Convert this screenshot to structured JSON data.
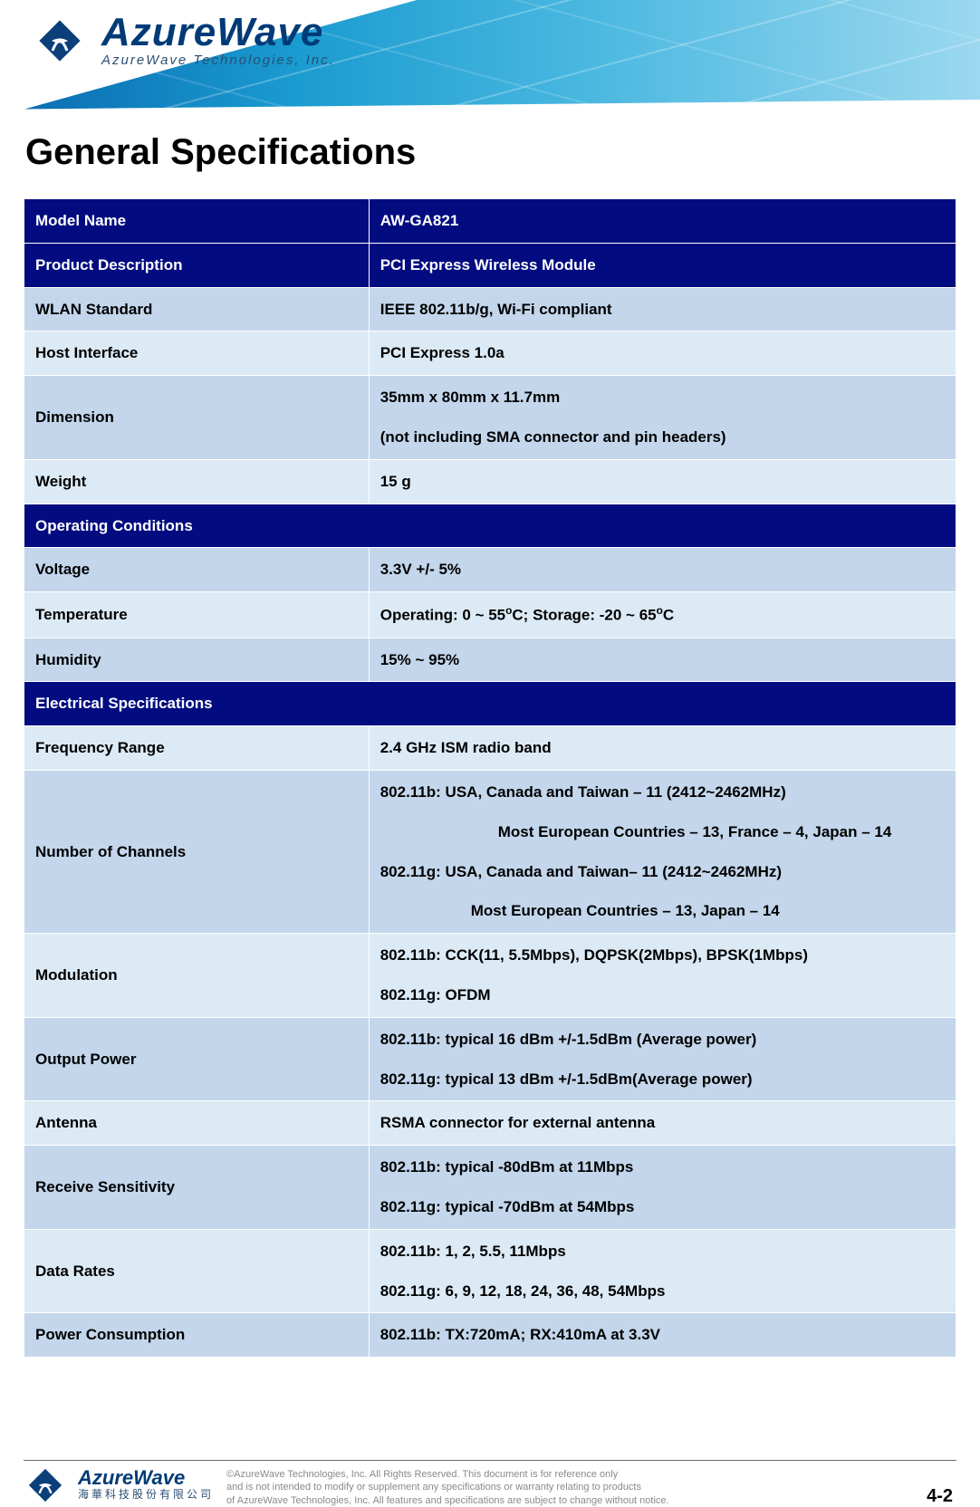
{
  "header": {
    "brand": "AzureWave",
    "tagline": "AzureWave  Technologies,  Inc.",
    "logo_colors": {
      "outer": "#0a3f7a",
      "inner": "#0a3f7a",
      "arc": "#ffffff"
    }
  },
  "title": "General Specifications",
  "table": {
    "type": "table",
    "columns": [
      "label",
      "value"
    ],
    "column_widths": [
      "37%",
      "63%"
    ],
    "header_bg": "#020c80",
    "header_fg": "#ffffff",
    "body_bg_even": "#dceaf5",
    "body_bg_odd": "#c3d6eb",
    "body_fg": "#000000",
    "label_font": "Verdana",
    "value_font": "Arial",
    "label_weight": "bold",
    "value_weight": "bold",
    "fontsize": 17,
    "rows": [
      {
        "kind": "header",
        "label": "Model Name",
        "value": "AW-GA821"
      },
      {
        "kind": "header",
        "label": "Product Description",
        "value": "PCI Express Wireless Module"
      },
      {
        "kind": "body",
        "label": "WLAN Standard",
        "value": "IEEE 802.11b/g, Wi-Fi compliant"
      },
      {
        "kind": "body",
        "label": "Host Interface",
        "value": "PCI Express 1.0a"
      },
      {
        "kind": "body",
        "label": "Dimension",
        "value_lines": [
          "35mm x 80mm x 11.7mm",
          "(not including SMA connector and pin headers)"
        ]
      },
      {
        "kind": "body",
        "label": "Weight",
        "value": "15 g"
      },
      {
        "kind": "section",
        "label": "Operating Conditions"
      },
      {
        "kind": "body",
        "label": "Voltage",
        "value": "3.3V +/- 5%"
      },
      {
        "kind": "body",
        "label": "Temperature",
        "value_html": "Operating: 0 ~ 55<sup>o</sup>C; Storage: -20 ~ 65<sup>o</sup>C"
      },
      {
        "kind": "body",
        "label": "Humidity",
        "value": "15% ~ 95%"
      },
      {
        "kind": "section",
        "label": "Electrical Specifications"
      },
      {
        "kind": "body",
        "label": "Frequency Range",
        "value": "2.4 GHz ISM radio band"
      },
      {
        "kind": "body",
        "label": "Number of Channels",
        "value_lines": [
          "802.11b: USA, Canada and Taiwan – 11 (2412~2462MHz)",
          {
            "text": "Most European Countries – 13, France – 4, Japan – 14",
            "indent": "indent-1"
          },
          "802.11g: USA, Canada and Taiwan– 11   (2412~2462MHz)",
          {
            "text": "Most European Countries – 13, Japan – 14",
            "indent": "indent-2"
          }
        ]
      },
      {
        "kind": "body",
        "label": "Modulation",
        "value_lines": [
          "802.11b: CCK(11, 5.5Mbps), DQPSK(2Mbps), BPSK(1Mbps)",
          "802.11g: OFDM"
        ]
      },
      {
        "kind": "body",
        "label": "Output Power",
        "value_lines": [
          "802.11b: typical 16 dBm +/-1.5dBm (Average power)",
          "802.11g: typical 13 dBm +/-1.5dBm(Average power)"
        ]
      },
      {
        "kind": "body",
        "label": "Antenna",
        "value": "RSMA connector for external antenna"
      },
      {
        "kind": "body",
        "label": "Receive Sensitivity",
        "value_lines": [
          "802.11b: typical -80dBm at 11Mbps",
          "802.11g: typical -70dBm at 54Mbps"
        ]
      },
      {
        "kind": "body",
        "label": "Data Rates",
        "value_lines": [
          "802.11b: 1, 2, 5.5, 11Mbps",
          "802.11g: 6, 9, 12, 18, 24, 36, 48, 54Mbps"
        ]
      },
      {
        "kind": "body",
        "label": "Power Consumption",
        "value_lines": [
          "802.11b: TX:720mA; RX:410mA at 3.3V"
        ]
      }
    ]
  },
  "footer": {
    "brand": "AzureWave",
    "brand_cn": "海華科技股份有限公司",
    "copyright_lines": [
      "©AzureWave Technologies, Inc. All Rights Reserved. This document is for reference only",
      "and is not intended to modify or supplement any specifications or  warranty relating to products",
      "of AzureWave Technologies, Inc.  All features and specifications are subject to change without notice."
    ],
    "page_number": "4-2"
  }
}
